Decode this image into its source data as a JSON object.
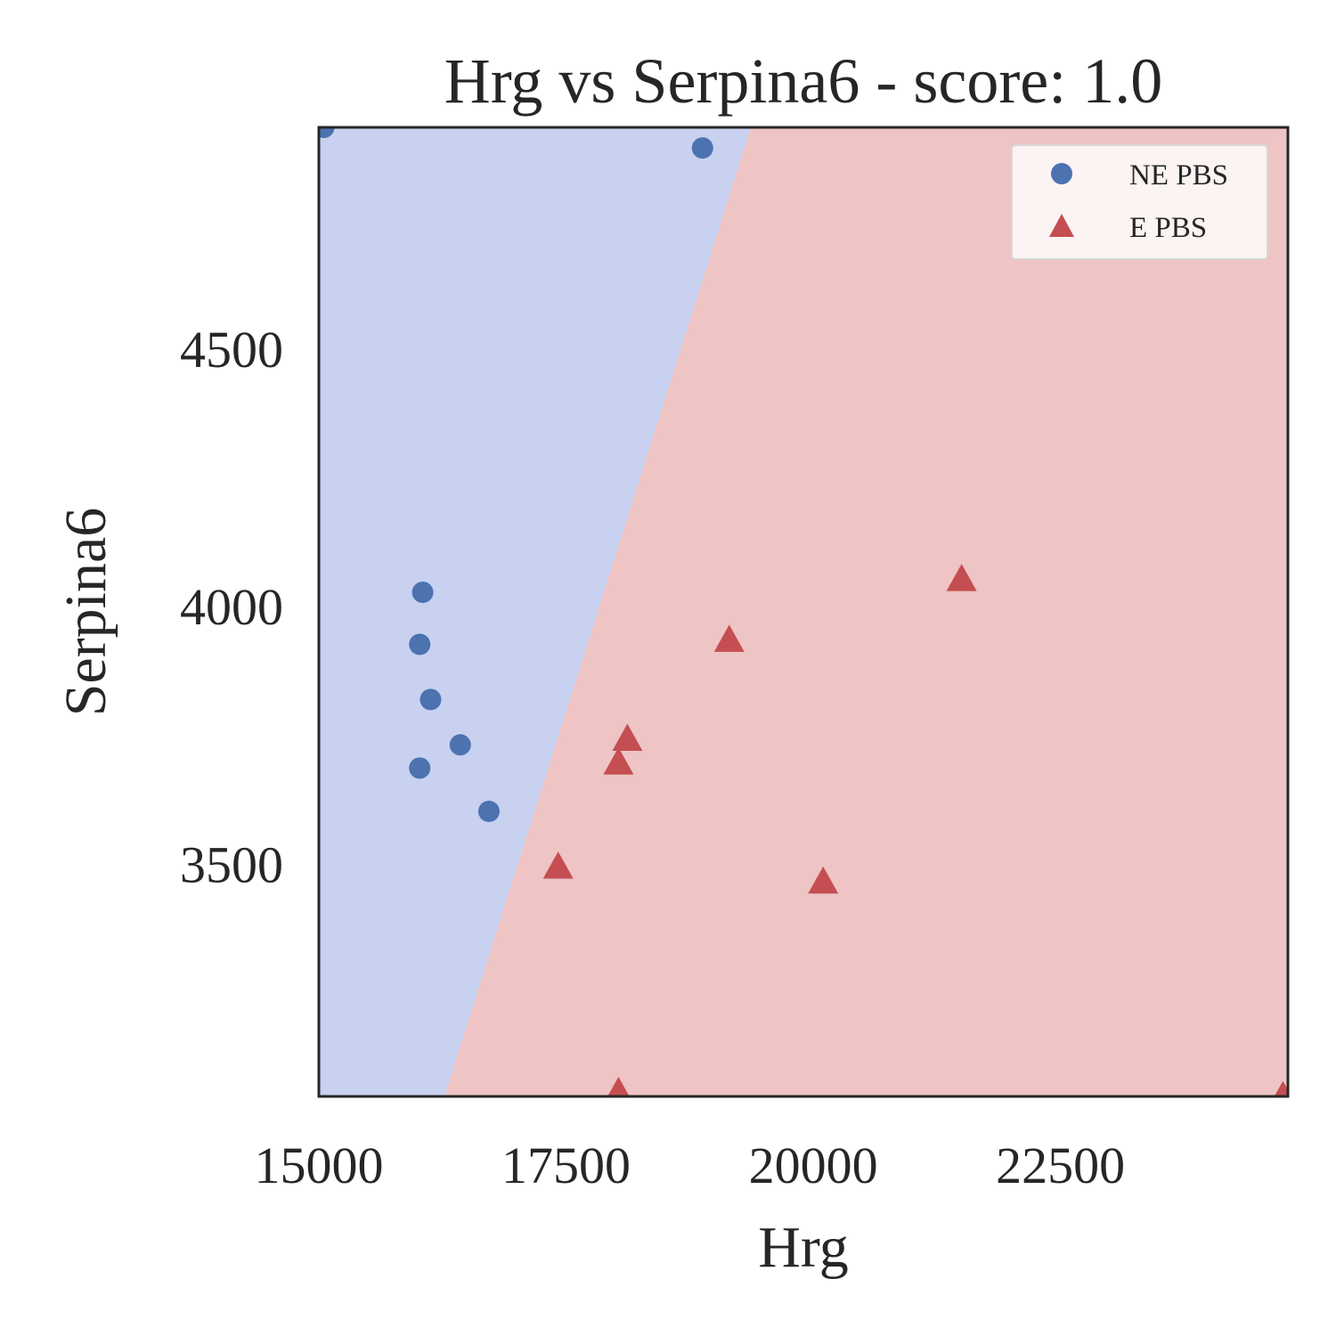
{
  "chart_data": {
    "type": "scatter",
    "title": "Hrg vs Serpina6 - score: 1.0",
    "xlabel": "Hrg",
    "ylabel": "Serpina6",
    "xlim": [
      15000,
      24800
    ],
    "ylim": [
      3050,
      4930
    ],
    "xticks": [
      "15000",
      "17500",
      "20000",
      "22500"
    ],
    "xtick_values": [
      15000,
      17500,
      20000,
      22500
    ],
    "yticks": [
      "3500",
      "4000",
      "4500"
    ],
    "ytick_values": [
      3500,
      4000,
      4500
    ],
    "grid": false,
    "legend_position": "top-right",
    "regions": [
      {
        "class": "NE PBS",
        "color": "#c8d1f0"
      },
      {
        "class": "E PBS",
        "color": "#eec4c4"
      }
    ],
    "decision_boundary": [
      [
        16270,
        3050
      ],
      [
        19370,
        4930
      ]
    ],
    "series": [
      {
        "name": "NE PBS",
        "marker": "circle",
        "color": "#4c72b0",
        "x": [
          15050,
          18880,
          16050,
          16020,
          16130,
          16430,
          16020,
          16720
        ],
        "y": [
          4930,
          4890,
          4028,
          3927,
          3820,
          3732,
          3687,
          3603
        ]
      },
      {
        "name": "E PBS",
        "marker": "triangle",
        "color": "#c44e52",
        "x": [
          21500,
          19150,
          18120,
          18030,
          17420,
          20100,
          18030,
          24750
        ],
        "y": [
          4053,
          3935,
          3743,
          3697,
          3495,
          3466,
          3058,
          3050
        ]
      }
    ]
  }
}
